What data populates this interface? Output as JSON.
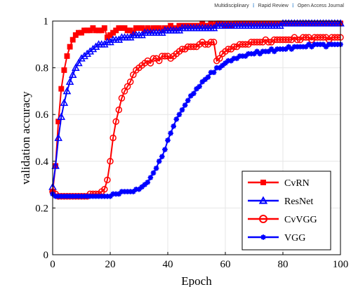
{
  "header": {
    "items": [
      "Multidisciplinary",
      "Rapid Review",
      "Open Access Journal"
    ],
    "separator": "⋮"
  },
  "chart_data": {
    "type": "line",
    "title": "",
    "xlabel": "Epoch",
    "ylabel": "validation accuracy",
    "xlim": [
      0,
      100
    ],
    "ylim": [
      0,
      1
    ],
    "xticks": [
      0,
      20,
      40,
      60,
      80,
      100
    ],
    "yticks": [
      0,
      0.2,
      0.4,
      0.6,
      0.8,
      1
    ],
    "ytick_labels": [
      "0",
      "0.2",
      "0.4",
      "0.6",
      "0.8",
      "1"
    ],
    "grid": true,
    "legend_position": "lower-right",
    "x": [
      0,
      1,
      2,
      3,
      4,
      5,
      6,
      7,
      8,
      9,
      10,
      11,
      12,
      13,
      14,
      15,
      16,
      17,
      18,
      19,
      20,
      21,
      22,
      23,
      24,
      25,
      26,
      27,
      28,
      29,
      30,
      31,
      32,
      33,
      34,
      35,
      36,
      37,
      38,
      39,
      40,
      41,
      42,
      43,
      44,
      45,
      46,
      47,
      48,
      49,
      50,
      51,
      52,
      53,
      54,
      55,
      56,
      57,
      58,
      59,
      60,
      61,
      62,
      63,
      64,
      65,
      66,
      67,
      68,
      69,
      70,
      71,
      72,
      73,
      74,
      75,
      76,
      77,
      78,
      79,
      80,
      81,
      82,
      83,
      84,
      85,
      86,
      87,
      88,
      89,
      90,
      91,
      92,
      93,
      94,
      95,
      96,
      97,
      98,
      99,
      100
    ],
    "series": [
      {
        "name": "CvRN",
        "color": "#ff0000",
        "marker": "square",
        "values": [
          0.27,
          0.38,
          0.57,
          0.71,
          0.79,
          0.85,
          0.89,
          0.92,
          0.94,
          0.95,
          0.95,
          0.96,
          0.96,
          0.96,
          0.97,
          0.96,
          0.96,
          0.96,
          0.97,
          0.93,
          0.94,
          0.95,
          0.96,
          0.97,
          0.97,
          0.97,
          0.96,
          0.96,
          0.95,
          0.97,
          0.97,
          0.97,
          0.96,
          0.97,
          0.96,
          0.97,
          0.97,
          0.97,
          0.96,
          0.97,
          0.97,
          0.98,
          0.97,
          0.97,
          0.98,
          0.98,
          0.98,
          0.98,
          0.98,
          0.98,
          0.98,
          0.98,
          0.99,
          0.98,
          0.98,
          0.99,
          0.98,
          0.99,
          0.99,
          0.99,
          0.98,
          0.99,
          0.98,
          0.99,
          0.99,
          0.99,
          0.99,
          0.99,
          0.99,
          0.99,
          0.99,
          0.99,
          0.99,
          0.99,
          0.99,
          0.99,
          0.99,
          0.99,
          0.99,
          0.99,
          0.99,
          0.99,
          0.99,
          0.99,
          0.99,
          0.99,
          0.99,
          0.99,
          0.99,
          0.99,
          0.99,
          0.99,
          0.99,
          0.99,
          0.99,
          0.99,
          0.99,
          0.99,
          0.99,
          0.99,
          0.99
        ]
      },
      {
        "name": "ResNet",
        "color": "#0000ff",
        "marker": "triangle",
        "values": [
          0.29,
          0.38,
          0.5,
          0.59,
          0.65,
          0.7,
          0.74,
          0.77,
          0.8,
          0.82,
          0.84,
          0.85,
          0.86,
          0.87,
          0.88,
          0.89,
          0.9,
          0.9,
          0.9,
          0.91,
          0.91,
          0.92,
          0.92,
          0.92,
          0.93,
          0.93,
          0.93,
          0.93,
          0.94,
          0.94,
          0.94,
          0.94,
          0.95,
          0.95,
          0.95,
          0.95,
          0.95,
          0.95,
          0.95,
          0.96,
          0.96,
          0.96,
          0.96,
          0.96,
          0.96,
          0.97,
          0.97,
          0.97,
          0.97,
          0.97,
          0.97,
          0.97,
          0.97,
          0.97,
          0.97,
          0.97,
          0.97,
          0.98,
          0.98,
          0.98,
          0.98,
          0.98,
          0.98,
          0.98,
          0.98,
          0.98,
          0.98,
          0.98,
          0.98,
          0.98,
          0.98,
          0.98,
          0.98,
          0.98,
          0.98,
          0.98,
          0.98,
          0.98,
          0.98,
          0.98,
          0.99,
          0.99,
          0.99,
          0.99,
          0.99,
          0.99,
          0.99,
          0.99,
          0.99,
          0.99,
          0.99,
          0.99,
          0.99,
          0.99,
          0.99,
          0.99,
          0.99,
          0.99,
          0.99,
          0.99,
          0.99
        ]
      },
      {
        "name": "CvVGG",
        "color": "#ff0000",
        "marker": "circle",
        "values": [
          0.27,
          0.26,
          0.25,
          0.25,
          0.25,
          0.25,
          0.25,
          0.25,
          0.25,
          0.25,
          0.25,
          0.25,
          0.25,
          0.26,
          0.26,
          0.26,
          0.26,
          0.27,
          0.28,
          0.32,
          0.4,
          0.5,
          0.57,
          0.62,
          0.67,
          0.7,
          0.72,
          0.74,
          0.77,
          0.79,
          0.8,
          0.81,
          0.82,
          0.83,
          0.82,
          0.84,
          0.84,
          0.83,
          0.85,
          0.85,
          0.85,
          0.84,
          0.85,
          0.86,
          0.87,
          0.88,
          0.88,
          0.89,
          0.89,
          0.89,
          0.89,
          0.9,
          0.91,
          0.9,
          0.9,
          0.91,
          0.91,
          0.83,
          0.84,
          0.86,
          0.87,
          0.88,
          0.88,
          0.89,
          0.89,
          0.9,
          0.9,
          0.9,
          0.9,
          0.91,
          0.91,
          0.91,
          0.91,
          0.91,
          0.92,
          0.91,
          0.91,
          0.92,
          0.92,
          0.92,
          0.92,
          0.92,
          0.92,
          0.92,
          0.93,
          0.92,
          0.92,
          0.93,
          0.93,
          0.93,
          0.92,
          0.93,
          0.93,
          0.93,
          0.93,
          0.93,
          0.92,
          0.93,
          0.93,
          0.93,
          0.93
        ]
      },
      {
        "name": "VGG",
        "color": "#0000ff",
        "marker": "star",
        "values": [
          0.26,
          0.25,
          0.25,
          0.25,
          0.25,
          0.25,
          0.25,
          0.25,
          0.25,
          0.25,
          0.25,
          0.25,
          0.25,
          0.25,
          0.25,
          0.25,
          0.25,
          0.25,
          0.25,
          0.25,
          0.25,
          0.26,
          0.26,
          0.26,
          0.27,
          0.27,
          0.27,
          0.27,
          0.27,
          0.28,
          0.28,
          0.29,
          0.3,
          0.31,
          0.33,
          0.35,
          0.37,
          0.4,
          0.42,
          0.45,
          0.49,
          0.52,
          0.55,
          0.58,
          0.6,
          0.62,
          0.64,
          0.66,
          0.68,
          0.69,
          0.71,
          0.72,
          0.74,
          0.75,
          0.76,
          0.78,
          0.78,
          0.8,
          0.8,
          0.81,
          0.82,
          0.83,
          0.83,
          0.84,
          0.84,
          0.85,
          0.85,
          0.85,
          0.86,
          0.86,
          0.86,
          0.87,
          0.86,
          0.87,
          0.87,
          0.87,
          0.88,
          0.87,
          0.88,
          0.88,
          0.88,
          0.88,
          0.89,
          0.88,
          0.89,
          0.89,
          0.89,
          0.89,
          0.89,
          0.9,
          0.89,
          0.9,
          0.9,
          0.9,
          0.9,
          0.89,
          0.9,
          0.9,
          0.9,
          0.9,
          0.9
        ]
      }
    ]
  }
}
